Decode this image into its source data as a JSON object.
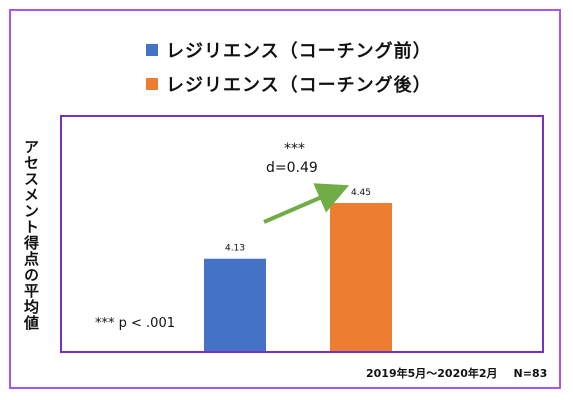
{
  "chart_data": {
    "type": "bar",
    "categories": [
      "レジリエンス（コーチング前）",
      "レジリエンス（コーチング後）"
    ],
    "values": [
      4.13,
      4.45
    ],
    "data_labels": [
      "4.13",
      "4.45"
    ],
    "colors": [
      "#4472c4",
      "#ed7d31"
    ],
    "ylabel": "アセスメント得点の平均値",
    "legend": {
      "position": "top",
      "entries": [
        "レジリエンス（コーチング前）",
        "レジリエンス（コーチング後）"
      ]
    },
    "annotations": {
      "significance": "***",
      "effect_size": "d=0.49",
      "p_note": "*** p < .001",
      "arrow_color": "#70ad47"
    },
    "grid": false
  },
  "footer": {
    "period": "2019年5月～2020年2月",
    "n": "N=83"
  },
  "frame_color": "#a855f7",
  "plot_border_color": "#7b2fbf"
}
